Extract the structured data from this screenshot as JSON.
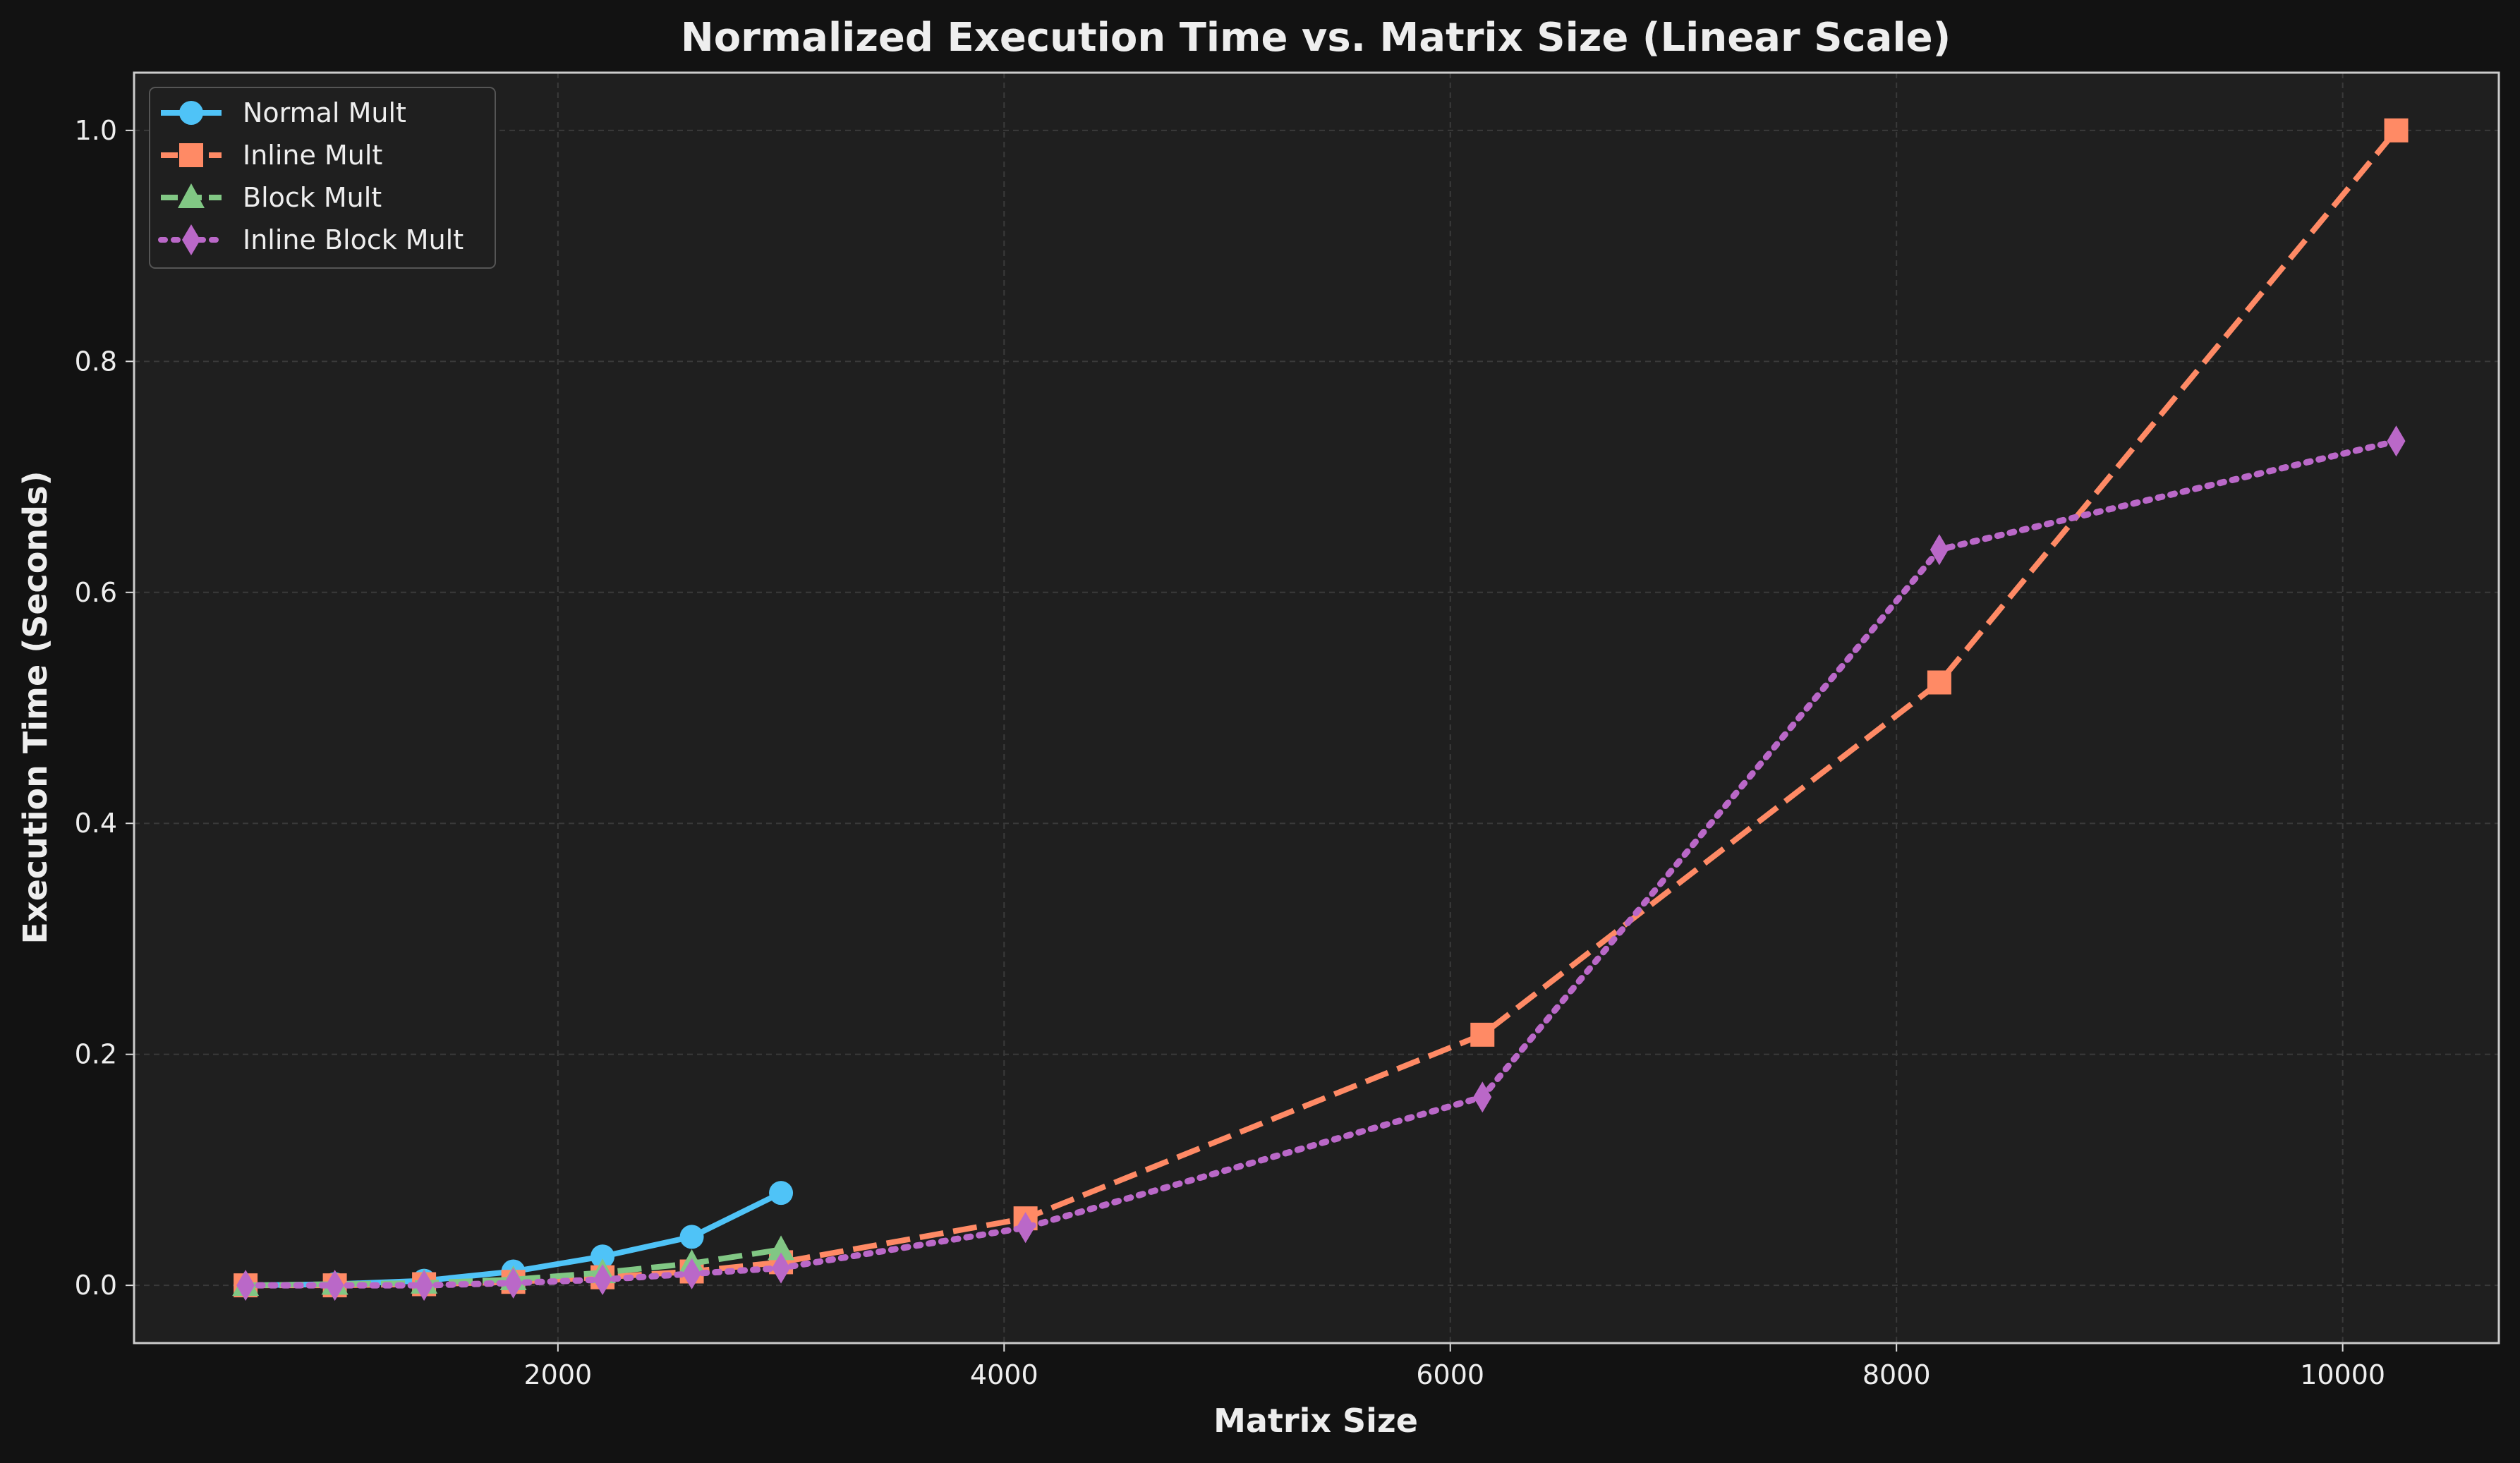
{
  "chart_data": {
    "type": "line",
    "title": "Normalized Execution Time vs. Matrix Size (Linear Scale)",
    "xlabel": "Matrix Size",
    "ylabel": "Execution Time (Seconds)",
    "xlim": [
      100,
      10700
    ],
    "ylim": [
      -0.05,
      1.05
    ],
    "xticks": [
      2000,
      4000,
      6000,
      8000,
      10000
    ],
    "xtick_labels": [
      "2000",
      "4000",
      "6000",
      "8000",
      "10000"
    ],
    "yticks": [
      0.0,
      0.2,
      0.4,
      0.6,
      0.8,
      1.0
    ],
    "ytick_labels": [
      "0.0",
      "0.2",
      "0.4",
      "0.6",
      "0.8",
      "1.0"
    ],
    "grid": true,
    "legend_position": "top-left",
    "series": [
      {
        "name": "Normal Mult",
        "color": "#4fc3f7",
        "marker": "circle",
        "linestyle": "solid",
        "x": [
          600,
          1000,
          1400,
          1800,
          2200,
          2600,
          3000
        ],
        "y": [
          0.0,
          0.001,
          0.004,
          0.012,
          0.025,
          0.042,
          0.08
        ]
      },
      {
        "name": "Inline Mult",
        "color": "#ff8a65",
        "marker": "square",
        "linestyle": "dashed",
        "x": [
          600,
          1000,
          1400,
          1800,
          2200,
          2600,
          3000,
          4096,
          6144,
          8192,
          10240
        ],
        "y": [
          0.0,
          0.0,
          0.001,
          0.003,
          0.007,
          0.012,
          0.02,
          0.058,
          0.217,
          0.522,
          1.0
        ]
      },
      {
        "name": "Block Mult",
        "color": "#81c784",
        "marker": "triangle",
        "linestyle": "dashed",
        "x": [
          600,
          1000,
          1400,
          1800,
          2200,
          2600,
          3000
        ],
        "y": [
          0.0,
          0.001,
          0.002,
          0.005,
          0.011,
          0.019,
          0.031
        ]
      },
      {
        "name": "Inline Block Mult",
        "color": "#ba68c8",
        "marker": "diamond",
        "linestyle": "dotted",
        "x": [
          600,
          1000,
          1400,
          1800,
          2200,
          2600,
          3000,
          4096,
          6144,
          8192,
          10240
        ],
        "y": [
          0.0,
          0.0,
          0.0,
          0.002,
          0.005,
          0.01,
          0.015,
          0.05,
          0.163,
          0.637,
          0.731
        ]
      }
    ]
  }
}
